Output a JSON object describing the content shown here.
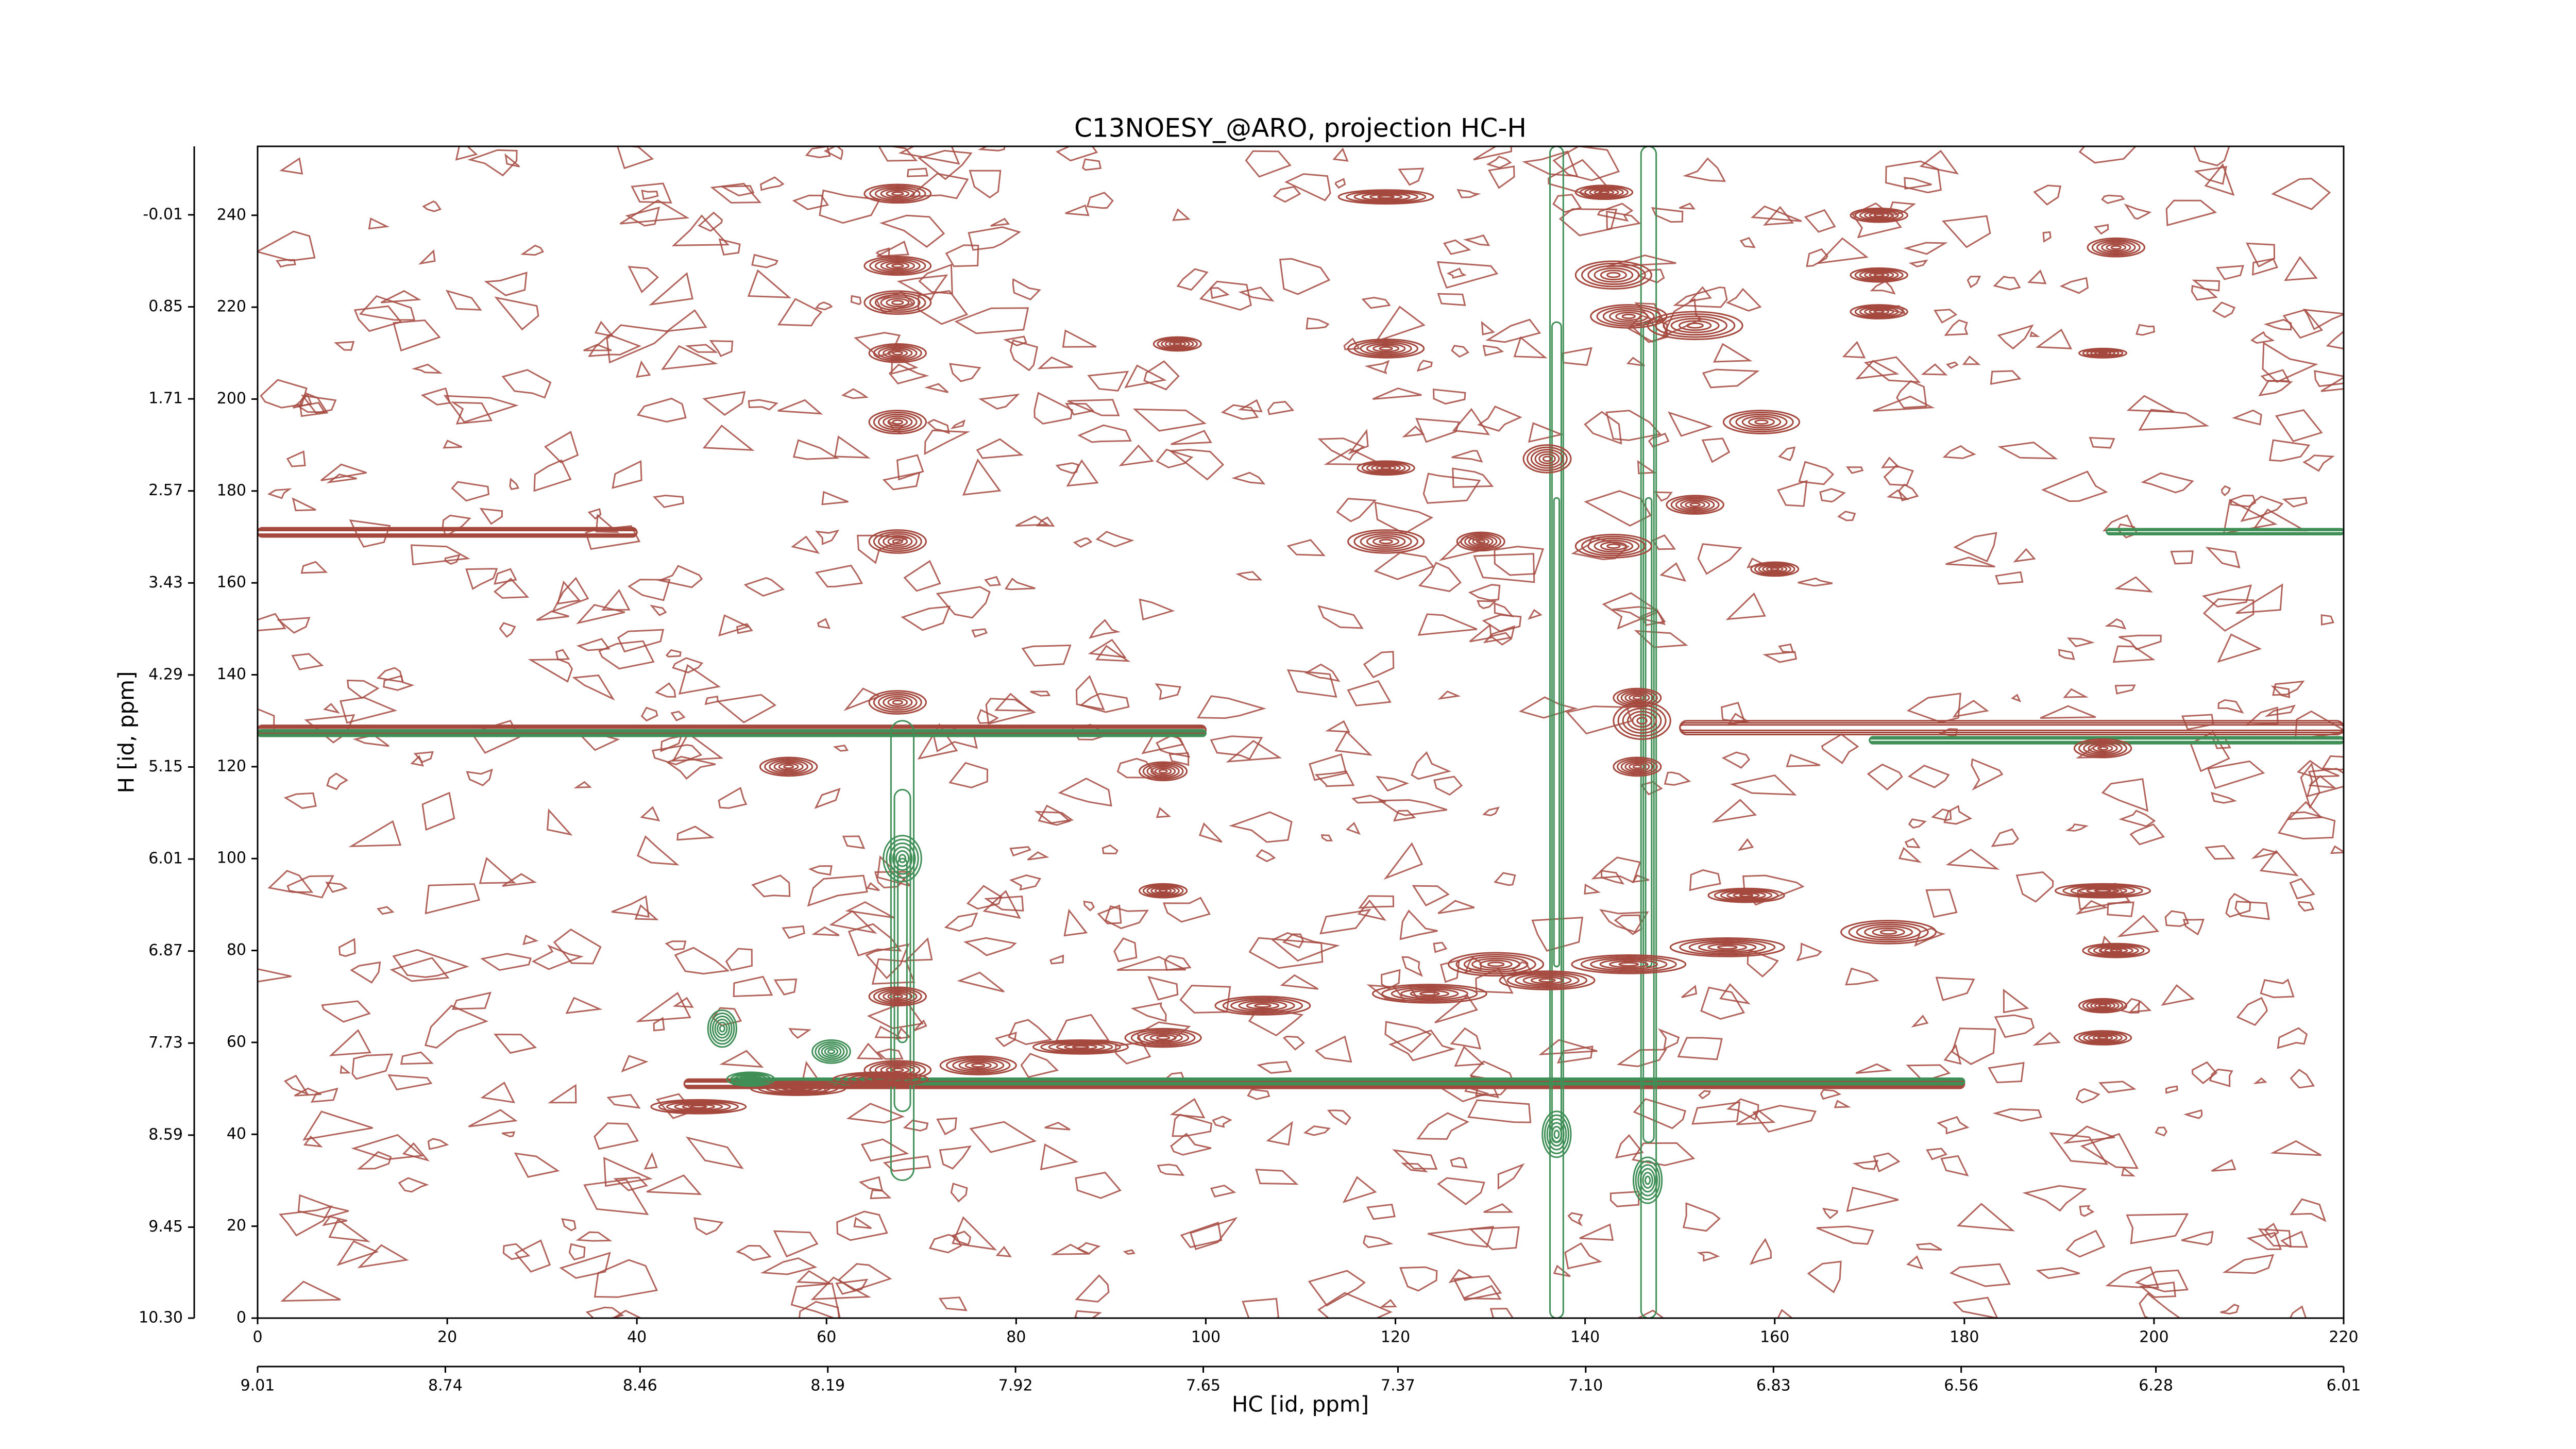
{
  "chart_data": {
    "type": "contour",
    "title": "C13NOESY_@ARO, projection HC-H",
    "xlabel": "HC [id, ppm]",
    "ylabel": "H [id, ppm]",
    "xlim": [
      0,
      220
    ],
    "ylim": [
      0,
      255
    ],
    "xticks": [
      0,
      20,
      40,
      60,
      80,
      100,
      120,
      140,
      160,
      180,
      200,
      220
    ],
    "yticks": [
      0,
      20,
      40,
      60,
      80,
      100,
      120,
      140,
      160,
      180,
      200,
      220,
      240
    ],
    "x2lim": [
      9.01,
      6.01
    ],
    "x2ticks": [
      9.01,
      8.74,
      8.46,
      8.19,
      7.92,
      7.65,
      7.37,
      {
        "value": 7.1,
        "label": "7.10"
      },
      6.83,
      6.56,
      6.28,
      6.01
    ],
    "y2lim": [
      10.3,
      -0.65
    ],
    "y2ticks": [
      -0.01,
      0.85,
      1.71,
      2.57,
      3.43,
      4.29,
      5.15,
      6.01,
      6.87,
      7.73,
      8.59,
      9.45,
      {
        "value": 10.3,
        "label": "10.30"
      }
    ],
    "series": [
      {
        "color": "#a5493f",
        "x": [
          67.5,
          67.5,
          67.5,
          67.5,
          67.5,
          67.5,
          67.5,
          67.5,
          67.5,
          97,
          95.5,
          95.5,
          119,
          119,
          119,
          119,
          129,
          143,
          142,
          143,
          144.6,
          151.6,
          158.6,
          151.6,
          160,
          171,
          171,
          171,
          196,
          194.6,
          194.6,
          194.6,
          196,
          194.6,
          194.6,
          172,
          157,
          145.5,
          145.5,
          130.6,
          106,
          95.5,
          76,
          46.5,
          57,
          65.7,
          86.8,
          123.6,
          136,
          144.6,
          155,
          136,
          146,
          56
        ],
        "y": [
          244.7,
          229,
          221,
          210,
          195,
          169,
          134,
          70,
          54,
          212,
          119,
          93,
          244,
          211,
          185,
          169,
          169,
          168,
          245,
          227,
          218,
          216,
          195,
          177,
          163,
          240,
          227,
          219,
          233,
          210,
          124,
          93,
          80,
          68,
          61,
          84,
          92,
          135,
          120,
          77,
          68,
          61,
          55,
          46,
          50,
          52,
          59,
          70.6,
          73.5,
          77,
          80.7,
          187,
          130,
          120
        ],
        "width": [
          7,
          7,
          7,
          6,
          6,
          6,
          6,
          6,
          7,
          5,
          5,
          5,
          10,
          8,
          6,
          8,
          5,
          8,
          6,
          8,
          8,
          10,
          8,
          6,
          5,
          6,
          6,
          6,
          6,
          5,
          6,
          10,
          7,
          5,
          6,
          10,
          8,
          5,
          5,
          10,
          10,
          8,
          8,
          10,
          10,
          10,
          10,
          12,
          10,
          12,
          12,
          5,
          6,
          6
        ],
        "height": [
          4,
          4,
          5,
          4,
          5,
          5,
          5,
          4,
          4,
          3,
          4,
          3,
          3,
          4,
          3,
          5,
          4,
          5,
          3,
          6,
          5,
          6,
          5,
          4,
          3,
          3,
          3,
          3,
          4,
          2,
          4,
          3,
          3,
          3,
          3,
          5,
          3,
          4,
          4,
          5,
          4,
          4,
          4,
          3,
          3,
          3,
          3,
          4,
          4,
          4,
          4,
          6,
          8,
          4
        ]
      },
      {
        "color": "#3f8f57",
        "x": [
          49,
          60.5,
          68,
          137,
          146.6,
          52
        ],
        "y": [
          63,
          58,
          100,
          40,
          30,
          52
        ],
        "width": [
          3,
          4,
          4,
          3,
          3,
          5
        ],
        "height": [
          8,
          5,
          10,
          10,
          10,
          3
        ]
      }
    ],
    "ridges": [
      {
        "color": "#a5493f",
        "x0": [
          0,
          150,
          45,
          0
        ],
        "x1": [
          100,
          220,
          180,
          40
        ],
        "y0": [
          127,
          127,
          50,
          170
        ],
        "y1": [
          129,
          130,
          52,
          172
        ]
      },
      {
        "color": "#3f8f57",
        "x0": [
          0,
          170,
          195,
          50,
          136.3,
          145.9,
          66.8
        ],
        "x1": [
          100,
          220,
          220,
          180,
          137.7,
          147.5,
          69.2
        ],
        "y0": [
          126.6,
          125,
          170.5,
          50.8,
          0,
          0,
          30
        ],
        "y1": [
          128,
          126.5,
          171.8,
          52.2,
          255,
          255,
          130
        ]
      }
    ]
  }
}
